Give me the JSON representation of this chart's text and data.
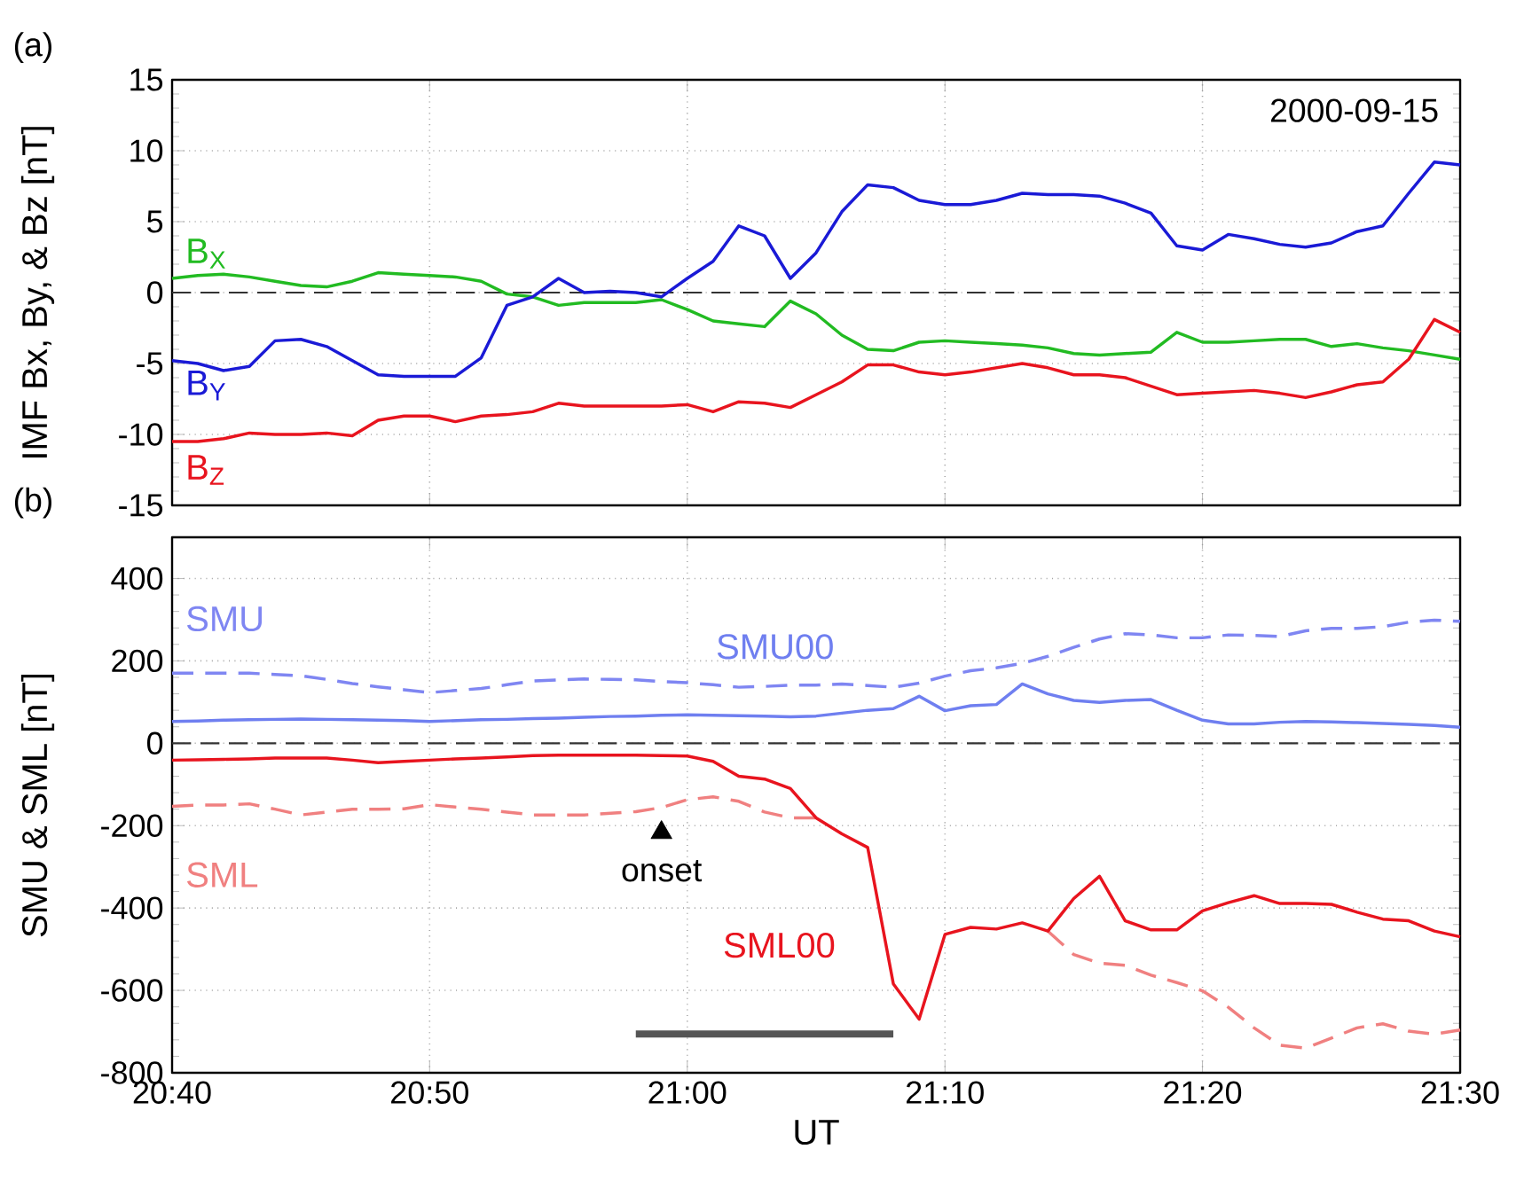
{
  "chart_data": [
    {
      "type": "line",
      "ylabel": "IMF Bx, By, & Bz [nT]",
      "annotations": [
        "(a)",
        "2000-09-15"
      ],
      "x": [
        20.6667,
        20.6833,
        20.7,
        20.7167,
        20.7333,
        20.75,
        20.7667,
        20.7833,
        20.8,
        20.8167,
        20.8333,
        20.85,
        20.8667,
        20.8833,
        20.9,
        20.9167,
        20.9333,
        20.95,
        20.9667,
        20.9833,
        21.0,
        21.0167,
        21.0333,
        21.05,
        21.0667,
        21.0833,
        21.1,
        21.1167,
        21.1333,
        21.15,
        21.1667,
        21.1833,
        21.2,
        21.2167,
        21.2333,
        21.25,
        21.2667,
        21.2833,
        21.3,
        21.3167,
        21.3333,
        21.35,
        21.3667,
        21.3833,
        21.4,
        21.4167,
        21.4333,
        21.45,
        21.4667,
        21.4833,
        21.5
      ],
      "series": [
        {
          "name": "B$_{X}$",
          "color": "#22bb22",
          "values": [
            1.0,
            1.2,
            1.3,
            1.1,
            0.8,
            0.5,
            0.4,
            0.8,
            1.4,
            1.3,
            1.2,
            1.1,
            0.8,
            -0.1,
            -0.3,
            -0.9,
            -0.7,
            -0.7,
            -0.7,
            -0.5,
            -1.2,
            -2.0,
            -2.2,
            -2.4,
            -0.6,
            -1.5,
            -3.0,
            -4.0,
            -4.1,
            -3.5,
            -3.4,
            -3.5,
            -3.6,
            -3.7,
            -3.9,
            -4.3,
            -4.4,
            -4.3,
            -4.2,
            -2.8,
            -3.5,
            -3.5,
            -3.4,
            -3.3,
            -3.3,
            -3.8,
            -3.6,
            -3.9,
            -4.1,
            -4.4,
            -4.7
          ]
        },
        {
          "name": "B$_{Y}$",
          "color": "#1a1ad6",
          "values": [
            -4.8,
            -5.0,
            -5.5,
            -5.2,
            -3.4,
            -3.3,
            -3.8,
            -4.8,
            -5.8,
            -5.9,
            -5.9,
            -5.9,
            -4.6,
            -0.9,
            -0.3,
            1.0,
            0.0,
            0.1,
            0.0,
            -0.3,
            1.0,
            2.2,
            4.7,
            4.0,
            1.0,
            2.8,
            5.7,
            7.6,
            7.4,
            6.5,
            6.2,
            6.2,
            6.5,
            7.0,
            6.9,
            6.9,
            6.8,
            6.3,
            5.6,
            3.3,
            3.0,
            4.1,
            3.8,
            3.4,
            3.2,
            3.5,
            4.3,
            4.7,
            7.0,
            9.2,
            9.0
          ]
        },
        {
          "name": "B$_{Z}$",
          "color": "#e8141e",
          "values": [
            -10.5,
            -10.5,
            -10.3,
            -9.9,
            -10.0,
            -10.0,
            -9.9,
            -10.1,
            -9.0,
            -8.7,
            -8.7,
            -9.1,
            -8.7,
            -8.6,
            -8.4,
            -7.8,
            -8.0,
            -8.0,
            -8.0,
            -8.0,
            -7.9,
            -8.4,
            -7.7,
            -7.8,
            -8.1,
            -7.2,
            -6.3,
            -5.1,
            -5.1,
            -5.6,
            -5.8,
            -5.6,
            -5.3,
            -5.0,
            -5.3,
            -5.8,
            -5.8,
            -6.0,
            -6.6,
            -7.2,
            -7.1,
            -7.0,
            -6.9,
            -7.1,
            -7.4,
            -7.0,
            -6.5,
            -6.3,
            -4.7,
            -1.9,
            -2.8
          ]
        }
      ],
      "xlim": [
        20.6667,
        21.5
      ],
      "xticks": [
        {
          "value": 20.6667,
          "label": null
        },
        {
          "value": 20.8333,
          "label": null
        },
        {
          "value": 21.0,
          "label": null
        },
        {
          "value": 21.1667,
          "label": null
        },
        {
          "value": 21.3333,
          "label": null
        },
        {
          "value": 21.5,
          "label": null
        }
      ],
      "ylim": [
        -15,
        15
      ],
      "yticks": [
        -15,
        -10,
        -5,
        0,
        5,
        10,
        15
      ],
      "ref_lines": [
        {
          "axis": "y",
          "value": 0,
          "line_style": "dashed"
        }
      ],
      "grid": true,
      "legend": false,
      "tick_labels": "y"
    },
    {
      "type": "line",
      "xlabel": "UT",
      "ylabel": "SMU & SML [nT]",
      "annotations": [
        "(b)",
        {
          "text": "onset",
          "x": 20.9833,
          "y": -217
        }
      ],
      "x": [
        20.6667,
        20.6833,
        20.7,
        20.7167,
        20.7333,
        20.75,
        20.7667,
        20.7833,
        20.8,
        20.8167,
        20.8333,
        20.85,
        20.8667,
        20.8833,
        20.9,
        20.9167,
        20.9333,
        20.95,
        20.9667,
        20.9833,
        21.0,
        21.0167,
        21.0333,
        21.05,
        21.0667,
        21.0833,
        21.1,
        21.1167,
        21.1333,
        21.15,
        21.1667,
        21.1833,
        21.2,
        21.2167,
        21.2333,
        21.25,
        21.2667,
        21.2833,
        21.3,
        21.3167,
        21.3333,
        21.35,
        21.3667,
        21.3833,
        21.4,
        21.4167,
        21.4333,
        21.45,
        21.4667,
        21.4833,
        21.5
      ],
      "series": [
        {
          "name": "SMU",
          "color": "#7f86f2",
          "line_style": "dashed",
          "values": [
            170,
            170,
            170,
            170,
            167,
            164,
            155,
            145,
            137,
            130,
            123,
            128,
            133,
            142,
            151,
            154,
            156,
            155,
            154,
            150,
            147,
            142,
            136,
            138,
            141,
            141,
            144,
            140,
            136,
            146,
            163,
            176,
            183,
            194,
            211,
            233,
            253,
            266,
            263,
            256,
            256,
            263,
            262,
            259,
            273,
            279,
            279,
            283,
            294,
            299,
            296
          ]
        },
        {
          "name": "SMU00",
          "color": "#6f7ff0",
          "values": [
            53,
            54,
            56,
            57,
            58,
            59,
            58,
            57,
            56,
            55,
            53,
            55,
            57,
            58,
            60,
            61,
            63,
            65,
            66,
            68,
            69,
            68,
            67,
            66,
            64,
            66,
            73,
            80,
            84,
            114,
            79,
            91,
            94,
            144,
            120,
            104,
            99,
            104,
            106,
            80,
            56,
            47,
            47,
            51,
            53,
            52,
            50,
            48,
            46,
            43,
            39
          ]
        },
        {
          "name": "SML",
          "color": "#f08080",
          "line_style": "dashed",
          "values": [
            -153,
            -150,
            -150,
            -147,
            -160,
            -174,
            -167,
            -160,
            -160,
            -159,
            -149,
            -155,
            -160,
            -167,
            -174,
            -174,
            -174,
            -170,
            -166,
            -156,
            -137,
            -130,
            -141,
            -167,
            -181,
            -181,
            null,
            null,
            null,
            null,
            null,
            null,
            null,
            null,
            -456,
            -513,
            -534,
            -539,
            -563,
            -581,
            -601,
            -641,
            -691,
            -733,
            -740,
            -716,
            -691,
            -681,
            -699,
            -706,
            -696
          ]
        },
        {
          "name": "SML00",
          "color": "#e8141e",
          "values": [
            -41,
            -40,
            -39,
            -38,
            -36,
            -36,
            -36,
            -41,
            -47,
            -44,
            -41,
            -38,
            -36,
            -33,
            -30,
            -29,
            -29,
            -29,
            -29,
            -30,
            -31,
            -44,
            -80,
            -87,
            -110,
            -181,
            -220,
            -253,
            -584,
            -670,
            -464,
            -447,
            -451,
            -436,
            -456,
            -377,
            -323,
            -431,
            -453,
            -453,
            -407,
            -387,
            -370,
            -389,
            -389,
            -391,
            -410,
            -427,
            -431,
            -456,
            -470
          ]
        },
        {
          "color": "#555555",
          "x": [
            20.9667,
            21.1333
          ],
          "values": [
            -706,
            -706
          ]
        }
      ],
      "xlim": [
        20.6667,
        21.5
      ],
      "xticks": [
        {
          "value": 20.6667,
          "label": "20:40"
        },
        {
          "value": 20.8333,
          "label": "20:50"
        },
        {
          "value": 21.0,
          "label": "21:00"
        },
        {
          "value": 21.1667,
          "label": "21:10"
        },
        {
          "value": 21.3333,
          "label": "21:20"
        },
        {
          "value": 21.5,
          "label": "21:30"
        }
      ],
      "ylim": [
        -800,
        500
      ],
      "yticks": [
        -800,
        -600,
        -400,
        -200,
        0,
        200,
        400
      ],
      "ref_lines": [
        {
          "axis": "y",
          "value": 0,
          "line_style": "dashed"
        }
      ],
      "grid": true,
      "legend": false
    }
  ]
}
